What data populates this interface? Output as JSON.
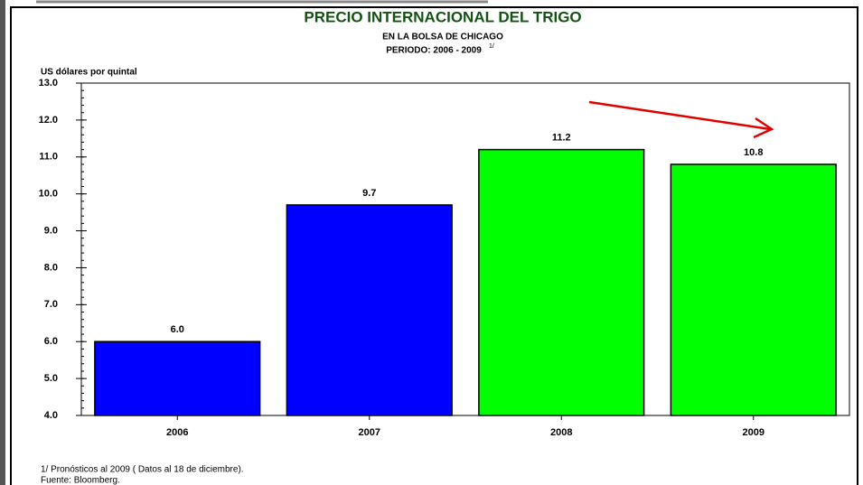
{
  "chart_data": {
    "type": "bar",
    "title": "PRECIO INTERNACIONAL DEL TRIGO",
    "subtitle": "EN LA BOLSA DE CHICAGO",
    "subtitle2": "PERIODO: 2006 - 2009",
    "subtitle2_superscript": "1/",
    "y_label": "US dólares por quintal",
    "categories": [
      "2006",
      "2007",
      "2008",
      "2009"
    ],
    "values": [
      6.0,
      9.7,
      11.2,
      10.8
    ],
    "value_labels": [
      "6.0",
      "9.7",
      "11.2",
      "10.8"
    ],
    "colors": [
      "#0000ff",
      "#0000ff",
      "#00ff00",
      "#00ff00"
    ],
    "ylim": [
      4,
      13
    ],
    "yticks": [
      {
        "value": 4,
        "label": "4.0"
      },
      {
        "value": 5,
        "label": "5.0"
      },
      {
        "value": 6,
        "label": "6.0"
      },
      {
        "value": 7,
        "label": "7.0"
      },
      {
        "value": 8,
        "label": "8.0"
      },
      {
        "value": 9,
        "label": "9.0"
      },
      {
        "value": 10,
        "label": "10.0"
      },
      {
        "value": 11,
        "label": "11.0"
      },
      {
        "value": 12,
        "label": "12.0"
      },
      {
        "value": 13,
        "label": "13.0"
      }
    ],
    "grid": false,
    "footnotes": [
      "1/ Pronósticos al  2009 ( Datos al 18 de diciembre).",
      "Fuente: Bloomberg."
    ]
  }
}
